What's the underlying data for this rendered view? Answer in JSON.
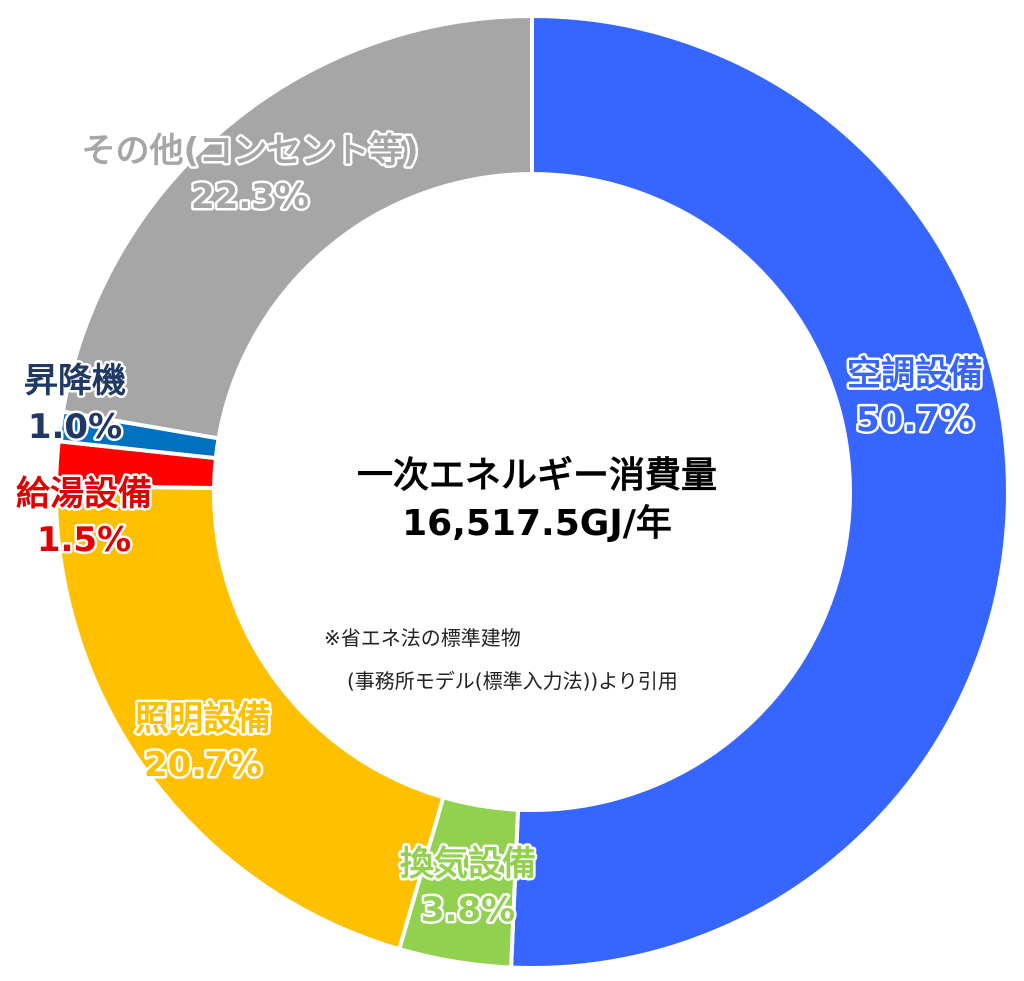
{
  "chart_data": {
    "type": "pie",
    "donut": true,
    "categories": [
      "空調設備",
      "換気設備",
      "照明設備",
      "給湯設備",
      "昇降機",
      "その他(コンセント等)"
    ],
    "values": [
      50.7,
      3.8,
      20.7,
      1.5,
      1.0,
      22.3
    ],
    "value_labels": [
      "50.7%",
      "3.8%",
      "20.7%",
      "1.5%",
      "1.0%",
      "22.3%"
    ],
    "colors": [
      "#3666FF",
      "#92D050",
      "#FFC000",
      "#FF0000",
      "#0070C0",
      "#A6A6A6"
    ],
    "label_colors": [
      "#3666FF",
      "#92D050",
      "#FFC000",
      "#FF0000",
      "#0070C0",
      "#A6A6A6"
    ],
    "start_angle_deg": 0,
    "direction": "clockwise",
    "center_title": [
      "一次エネルギー消費量",
      "16,517.5GJ/年"
    ],
    "center_note": [
      "※省エネ法の標準建物",
      "(事務所モデル(標準入力法))より引用"
    ]
  }
}
